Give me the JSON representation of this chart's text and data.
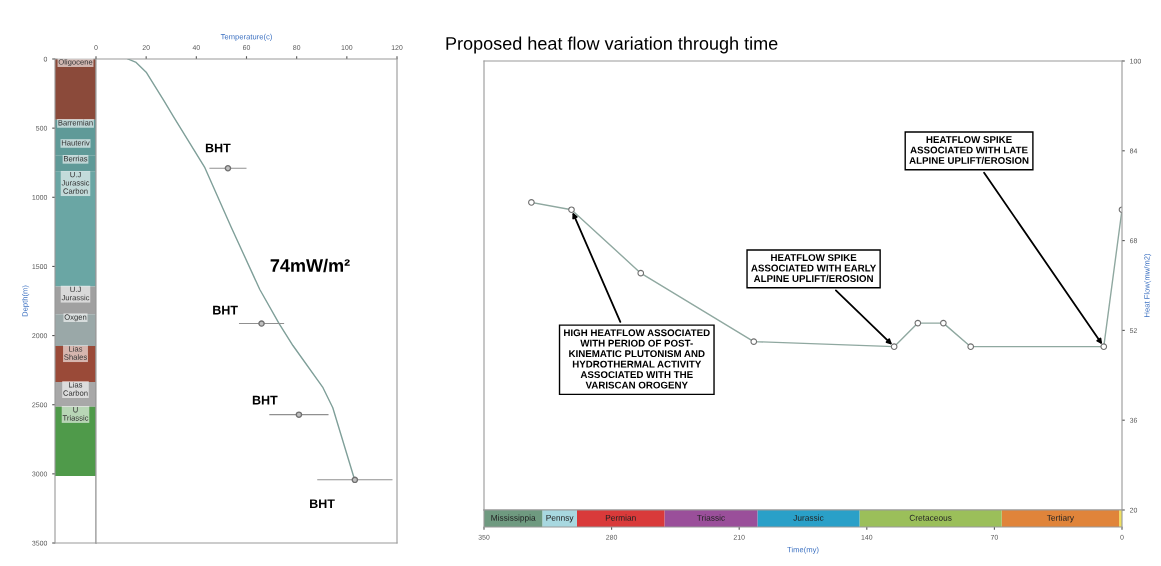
{
  "chart_data": [
    {
      "type": "bar",
      "stacked": true,
      "categories": [
        null
      ],
      "ylim": [
        3500,
        0
      ],
      "yticks": [
        0,
        500,
        1000,
        1500,
        2000,
        2500,
        3000,
        3500
      ],
      "ylabel": "Depth(m)",
      "tick_labels": "y",
      "series": [
        {
          "name": "Oligocene",
          "color": "#8b4a3a",
          "values": [
            440
          ]
        },
        {
          "name": "Barremian",
          "color": "#5f9a98",
          "values": [
            145
          ]
        },
        {
          "name": "Hauteriv",
          "color": "#5f9a98",
          "values": [
            115
          ]
        },
        {
          "name": "Berrias",
          "color": "#5f9a98",
          "values": [
            115
          ]
        },
        {
          "name": "U.J\nJurassic\nCarbon",
          "color": "#6aa6a4",
          "values": [
            830
          ]
        },
        {
          "name": "U.J\nJurassic",
          "color": "#a0a0a0",
          "values": [
            200
          ]
        },
        {
          "name": "Oxgen",
          "color": "#9aa8a8",
          "values": [
            230
          ]
        },
        {
          "name": "Lias\nShales",
          "color": "#9a4a38",
          "values": [
            260
          ]
        },
        {
          "name": "Lias\nCarbon",
          "color": "#a8a8a8",
          "values": [
            180
          ]
        },
        {
          "name": "U\nTriassic",
          "color": "#4f9a4a",
          "values": [
            500
          ]
        }
      ]
    },
    {
      "type": "line",
      "xlabel": "Temperature(c)",
      "xlim": [
        0,
        120
      ],
      "xticks": [
        0,
        20,
        40,
        60,
        80,
        100,
        120
      ],
      "ylim": [
        3500,
        0
      ],
      "tick_labels": "x",
      "series": [
        {
          "type": "line",
          "color": "#7f9f99",
          "x": [
            12.7,
            16,
            20,
            27,
            31,
            43.4,
            54,
            65.3,
            73,
            78.5,
            90.5,
            94.4,
            103
          ],
          "values": [
            0,
            25,
            95,
            300,
            420,
            786,
            1220,
            1667,
            1913,
            2072,
            2377,
            2522,
            3036
          ]
        },
        {
          "type": "scatter",
          "color": "#707070",
          "marker": "circle",
          "x": [
            52.6,
            66,
            80.9,
            103.2
          ],
          "values": [
            790,
            1913,
            2572,
            3043
          ],
          "xerrors": [
            7.4,
            9,
            11.8,
            15
          ]
        }
      ],
      "annotations": [
        "BHT",
        "BHT",
        "BHT",
        "BHT",
        "74mW/m²"
      ]
    },
    {
      "type": "line",
      "title": "Proposed heat flow variation through time",
      "ylabel": "Heat Flow(mw/m2)",
      "xlim": [
        350,
        0
      ],
      "ylim": [
        20,
        100
      ],
      "yticks": [
        20,
        36,
        52,
        68,
        84,
        100
      ],
      "tick_labels": "y",
      "marker": "circle",
      "series": [
        {
          "color": "#8fa8a0",
          "x": [
            324,
            302,
            264,
            202,
            125,
            112,
            98,
            83,
            10,
            0
          ],
          "values": [
            74.8,
            73.5,
            62.2,
            50,
            49.1,
            53.3,
            53.3,
            49.1,
            49.1,
            73.5
          ]
        }
      ],
      "annotations": [
        {
          "text": "HIGH HEATFLOW ASSOCIATED\nWITH PERIOD OF POST-\nKINEMATIC PLUTONISM AND\nHYDROTHERMAL ACTIVITY\nASSOCIATED WITH THE\nVARISCAN OROGENY",
          "x": 302,
          "y": 73.5
        },
        {
          "text": "HEATFLOW SPIKE\nASSOCIATED WITH EARLY\nALPINE UPLIFT/EROSION",
          "x": 125,
          "y": 49.1
        },
        {
          "text": "HEATFLOW SPIKE\nASSOCIATED WITH LATE\nALPINE UPLIFT/EROSION",
          "x": 10,
          "y": 49.1
        }
      ]
    },
    {
      "type": "bar",
      "orientation": "horizontal",
      "stacked": true,
      "categories": [
        null
      ],
      "xlim": [
        350,
        0
      ],
      "xticks": [
        350,
        280,
        210,
        140,
        70,
        0
      ],
      "xlabel": "Time(my)",
      "tick_labels": "x",
      "series": [
        {
          "color": "#f0e060",
          "values": [
            1.6
          ]
        },
        {
          "name": "Tertiary",
          "color": "#e0843a",
          "values": [
            64.4
          ]
        },
        {
          "name": "Cretaceous",
          "color": "#9bbf5a",
          "values": [
            78
          ]
        },
        {
          "name": "Jurassic",
          "color": "#2aa0c8",
          "values": [
            56
          ]
        },
        {
          "name": "Triassic",
          "color": "#9a4f9a",
          "values": [
            51
          ]
        },
        {
          "name": "Permian",
          "color": "#d93a3a",
          "values": [
            48
          ]
        },
        {
          "name": "Pennsy",
          "color": "#a8d8e0",
          "values": [
            19
          ]
        },
        {
          "name": "Mississippia",
          "color": "#6f9a80",
          "values": [
            32
          ]
        }
      ]
    }
  ]
}
